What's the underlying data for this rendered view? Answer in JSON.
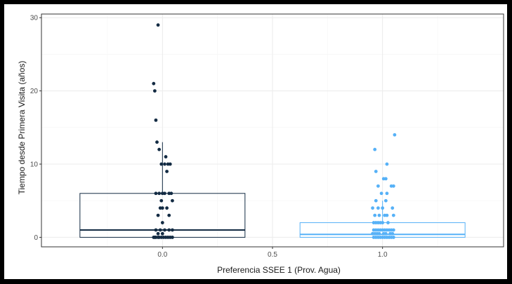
{
  "chart_data": {
    "type": "boxplot",
    "title": "",
    "xlabel": "Preferencia SSEE 1 (Prov. Agua)",
    "ylabel": "Tiempo desde Primera Visita (años)",
    "xlim": [
      -0.55,
      1.55
    ],
    "ylim": [
      -1.3,
      30.5
    ],
    "x_ticks": [
      "0.0",
      "0.5",
      "1.0"
    ],
    "x_tick_values": [
      0,
      0.5,
      1
    ],
    "y_ticks": [
      "0",
      "10",
      "20",
      "30"
    ],
    "y_tick_values": [
      0,
      10,
      20,
      30
    ],
    "grid": true,
    "legend": "none",
    "groups": [
      {
        "category": "0.0",
        "x": 0,
        "color": "#132b43",
        "box_halfwidth": 0.375,
        "box": {
          "whisker_low": 0,
          "q1": 0,
          "median": 1,
          "q3": 6,
          "whisker_high": 13
        },
        "points": [
          [
            -0.02,
            29
          ],
          [
            -0.04,
            21
          ],
          [
            -0.035,
            20
          ],
          [
            -0.03,
            16
          ],
          [
            -0.025,
            13
          ],
          [
            -0.015,
            12
          ],
          [
            0.015,
            11
          ],
          [
            0.01,
            10
          ],
          [
            0.025,
            10
          ],
          [
            0.035,
            10
          ],
          [
            -0.005,
            10
          ],
          [
            0.02,
            9
          ],
          [
            -0.03,
            6
          ],
          [
            -0.015,
            6
          ],
          [
            0.0,
            6
          ],
          [
            0.01,
            6
          ],
          [
            0.03,
            6
          ],
          [
            0.04,
            6
          ],
          [
            -0.005,
            5
          ],
          [
            0.045,
            5
          ],
          [
            -0.01,
            4
          ],
          [
            0.0,
            4
          ],
          [
            0.02,
            4
          ],
          [
            0.03,
            3
          ],
          [
            -0.02,
            3
          ],
          [
            0.0,
            2
          ],
          [
            -0.03,
            1
          ],
          [
            -0.01,
            1
          ],
          [
            0.01,
            1
          ],
          [
            0.03,
            1
          ],
          [
            0.045,
            1
          ],
          [
            -0.02,
            0.5
          ],
          [
            0.0,
            0.5
          ],
          [
            -0.04,
            0
          ],
          [
            -0.035,
            0
          ],
          [
            -0.03,
            0
          ],
          [
            -0.02,
            0
          ],
          [
            -0.015,
            0
          ],
          [
            -0.005,
            0
          ],
          [
            0.005,
            0
          ],
          [
            0.015,
            0
          ],
          [
            0.025,
            0
          ],
          [
            0.035,
            0
          ],
          [
            0.045,
            0
          ]
        ]
      },
      {
        "category": "1.0",
        "x": 1,
        "color": "#56b1f7",
        "box_halfwidth": 0.375,
        "box": {
          "whisker_low": 0,
          "q1": 0,
          "median": 0.4,
          "q3": 2,
          "whisker_high": 5
        },
        "points": [
          [
            0.055,
            14
          ],
          [
            -0.035,
            12
          ],
          [
            0.02,
            10
          ],
          [
            -0.03,
            9
          ],
          [
            0.005,
            8
          ],
          [
            0.015,
            8
          ],
          [
            -0.02,
            7
          ],
          [
            0.04,
            7
          ],
          [
            0.05,
            7
          ],
          [
            -0.005,
            6
          ],
          [
            0.02,
            6
          ],
          [
            -0.03,
            5
          ],
          [
            0.015,
            5
          ],
          [
            -0.045,
            4
          ],
          [
            -0.02,
            4
          ],
          [
            0.0,
            4
          ],
          [
            0.045,
            4
          ],
          [
            -0.035,
            3
          ],
          [
            -0.015,
            3
          ],
          [
            0.01,
            3
          ],
          [
            0.02,
            3
          ],
          [
            0.05,
            3
          ],
          [
            -0.04,
            2
          ],
          [
            -0.03,
            2
          ],
          [
            -0.02,
            2
          ],
          [
            -0.01,
            2
          ],
          [
            0.0,
            2
          ],
          [
            0.025,
            2
          ],
          [
            -0.04,
            1
          ],
          [
            -0.03,
            1
          ],
          [
            -0.02,
            1
          ],
          [
            -0.01,
            1
          ],
          [
            0.0,
            1
          ],
          [
            0.01,
            1
          ],
          [
            0.02,
            1
          ],
          [
            0.03,
            1
          ],
          [
            0.04,
            1
          ],
          [
            0.05,
            1
          ],
          [
            -0.045,
            0.5
          ],
          [
            -0.035,
            0.5
          ],
          [
            -0.025,
            0.5
          ],
          [
            -0.015,
            0.5
          ],
          [
            0.005,
            0.5
          ],
          [
            0.015,
            0.5
          ],
          [
            0.035,
            0.5
          ],
          [
            0.045,
            0.5
          ],
          [
            -0.04,
            0
          ],
          [
            -0.03,
            0
          ],
          [
            -0.02,
            0
          ],
          [
            -0.01,
            0
          ],
          [
            0.0,
            0
          ],
          [
            0.01,
            0
          ],
          [
            0.02,
            0
          ],
          [
            0.03,
            0
          ],
          [
            0.04,
            0
          ],
          [
            0.05,
            0
          ]
        ]
      }
    ]
  },
  "colors": {
    "frame": "#000000",
    "panel_background": "#ffffff",
    "grid_major": "#ebebeb",
    "grid_minor": "#f5f5f5",
    "panel_border": "#333333"
  }
}
